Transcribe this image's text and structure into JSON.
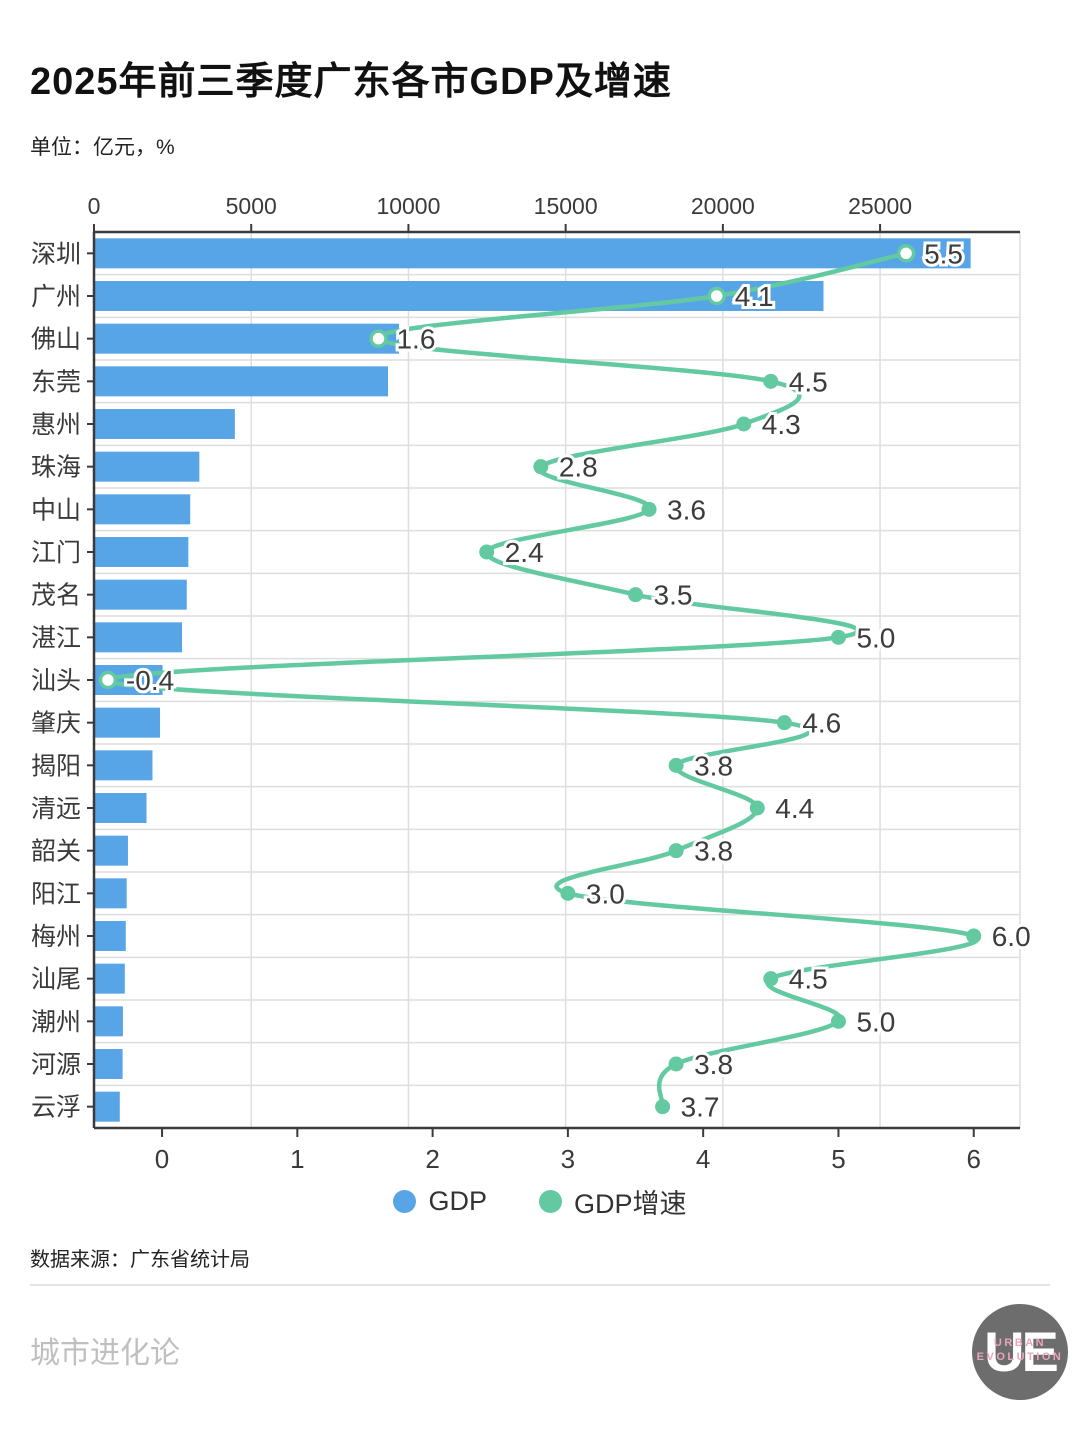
{
  "page": {
    "title": "2025年前三季度广东各市GDP及增速",
    "subtitle": "单位：亿元，%",
    "source": "数据来源：广东省统计局",
    "footer_brand": "城市进化论",
    "logo": {
      "initials": "UE",
      "line1": "URBAN",
      "line2": "EVOLUTION"
    }
  },
  "legend": [
    {
      "label": "GDP",
      "color": "#57a5e6"
    },
    {
      "label": "GDP增速",
      "color": "#62c9a0"
    }
  ],
  "chart_data": {
    "type": "bar",
    "orientation": "horizontal",
    "title": "2025年前三季度广东各市GDP及增速",
    "unit": "亿元，%",
    "categories": [
      "深圳",
      "广州",
      "佛山",
      "东莞",
      "惠州",
      "珠海",
      "中山",
      "江门",
      "茂名",
      "湛江",
      "汕头",
      "肇庆",
      "揭阳",
      "清远",
      "韶关",
      "阳江",
      "梅州",
      "汕尾",
      "潮州",
      "河源",
      "云浮"
    ],
    "series": [
      {
        "name": "GDP",
        "type": "bar",
        "axis": "top",
        "unit": "亿元",
        "values": [
          27880,
          23200,
          9700,
          9350,
          4480,
          3350,
          3060,
          3000,
          2950,
          2800,
          2180,
          2100,
          1860,
          1670,
          1080,
          1040,
          1010,
          980,
          920,
          910,
          820
        ]
      },
      {
        "name": "GDP增速",
        "type": "line",
        "axis": "bottom",
        "unit": "%",
        "values": [
          5.5,
          4.1,
          1.6,
          4.5,
          4.3,
          2.8,
          3.6,
          2.4,
          3.5,
          5.0,
          -0.4,
          4.6,
          3.8,
          4.4,
          3.8,
          3.0,
          6.0,
          4.5,
          5.0,
          3.8,
          3.7
        ]
      }
    ],
    "top_axis": {
      "ticks": [
        0,
        5000,
        10000,
        15000,
        20000,
        25000
      ],
      "min": 0,
      "max": 29450
    },
    "bottom_axis": {
      "ticks": [
        0,
        1,
        2,
        3,
        4,
        5,
        6
      ],
      "min": -0.503,
      "max": 6.342
    },
    "grid": true,
    "legend_position": "bottom",
    "colors": {
      "bar": "#57a5e6",
      "line": "#62c9a0",
      "axis": "#3a3a3a",
      "grid": "#dedede",
      "label": "#3a3a3a",
      "value_label": "#3c3c3c"
    }
  }
}
